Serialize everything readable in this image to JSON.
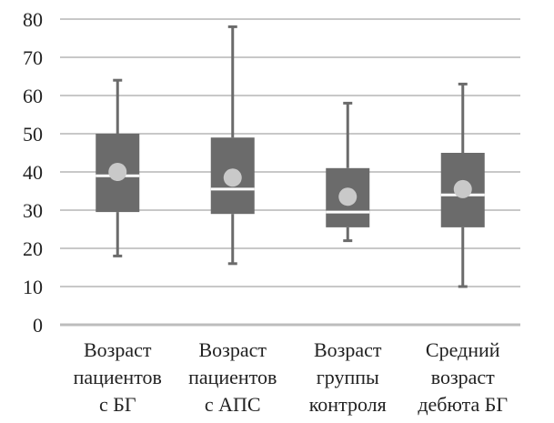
{
  "chart_data": {
    "type": "boxplot",
    "title": "",
    "xlabel": "",
    "ylabel": "",
    "ylim": [
      0,
      80
    ],
    "yticks": [
      0,
      10,
      20,
      30,
      40,
      50,
      60,
      70,
      80
    ],
    "grid": true,
    "categories": [
      [
        "Возраст",
        "пациентов",
        "с БГ"
      ],
      [
        "Возраст",
        "пациентов",
        "с АПС"
      ],
      [
        "Возраст",
        "группы",
        "контроля"
      ],
      [
        "Средний",
        "возраст",
        "дебюта БГ"
      ]
    ],
    "series": [
      {
        "min": 18,
        "q1": 29.5,
        "median": 39,
        "q3": 50,
        "max": 64,
        "mean": 40
      },
      {
        "min": 16,
        "q1": 29,
        "median": 35.5,
        "q3": 49,
        "max": 78,
        "mean": 38.5
      },
      {
        "min": 22,
        "q1": 25.5,
        "median": 29.5,
        "q3": 41,
        "max": 58,
        "mean": 33.5
      },
      {
        "min": 10,
        "q1": 25.5,
        "median": 34,
        "q3": 45,
        "max": 63,
        "mean": 35.5
      }
    ],
    "colors": {
      "box": "#6b6b6b",
      "median": "#ffffff",
      "mean": "#c9c9c9",
      "whisker": "#6b6b6b",
      "grid": "#c8c8c8",
      "axis": "#bdbdbd"
    }
  }
}
